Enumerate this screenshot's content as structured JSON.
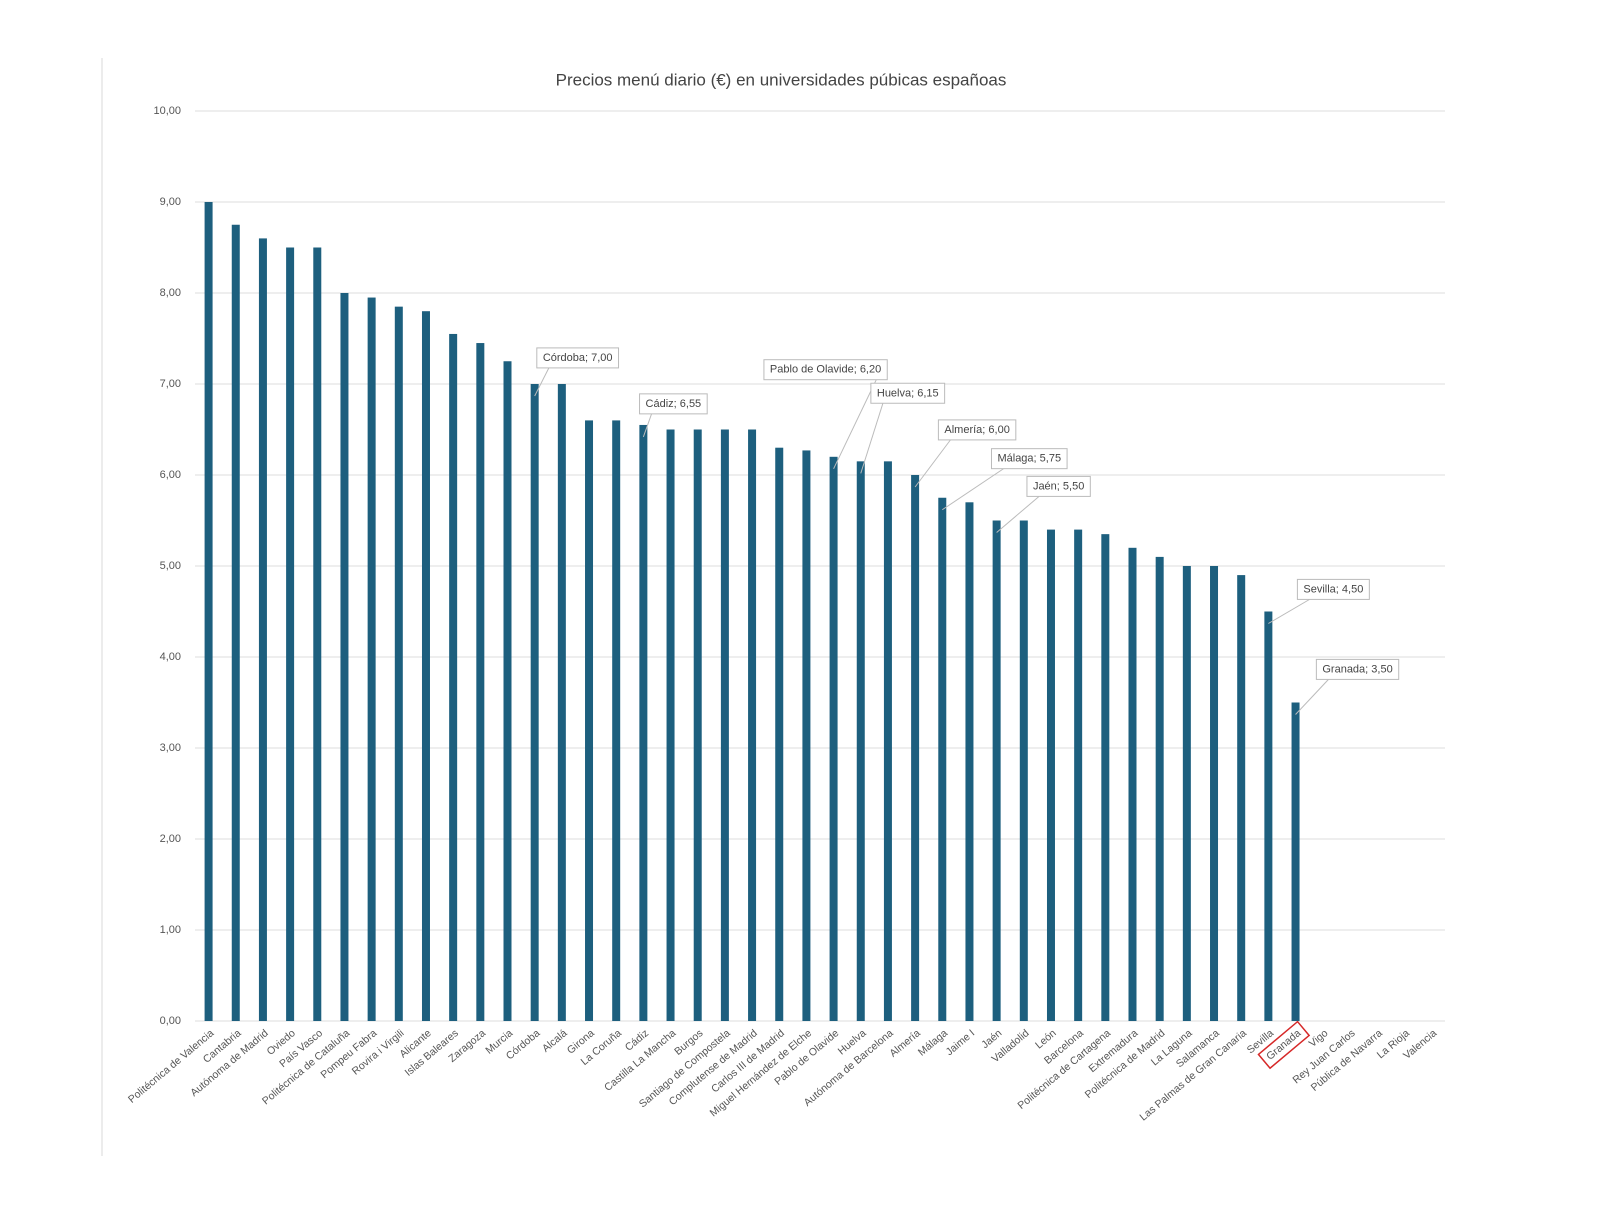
{
  "chart_data": {
    "type": "bar",
    "title": "Precios menú diario (€) en universidades púbicas españoas",
    "categories": [
      "Politécnica de Valencia",
      "Cantabria",
      "Autónoma de Madrid",
      "Oviedo",
      "País Vasco",
      "Politécnica de Cataluña",
      "Pompeu Fabra",
      "Rovira i Virgili",
      "Alicante",
      "Islas Baleares",
      "Zaragoza",
      "Murcia",
      "Córdoba",
      "Alcalá",
      "Girona",
      "La Coruña",
      "Cádiz",
      "Castilla La Mancha",
      "Burgos",
      "Santiago de Compostela",
      "Complutense de Madrid",
      "Carlos III de Madrid",
      "Miguel Hernández de Elche",
      "Pablo de Olavide",
      "Huelva",
      "Autónoma de Barcelona",
      "Almería",
      "Málaga",
      "Jaime I",
      "Jaén",
      "Valladolid",
      "León",
      "Barcelona",
      "Politécnica de Cartagena",
      "Extremadura",
      "Politécnica de Madrid",
      "La Laguna",
      "Salamanca",
      "Las Palmas de Gran Canaria",
      "Sevilla",
      "Granada",
      "Vigo",
      "Rey Juan Carlos",
      "Pública de Navarra",
      "La Rioja",
      "Valencia"
    ],
    "values": [
      9.0,
      8.75,
      8.6,
      8.5,
      8.5,
      8.0,
      7.95,
      7.85,
      7.8,
      7.55,
      7.45,
      7.25,
      7.0,
      7.0,
      6.6,
      6.6,
      6.55,
      6.5,
      6.5,
      6.5,
      6.5,
      6.3,
      6.27,
      6.2,
      6.15,
      6.15,
      6.0,
      5.75,
      5.7,
      5.5,
      5.5,
      5.4,
      5.4,
      5.35,
      5.2,
      5.1,
      5.0,
      5.0,
      4.9,
      4.5,
      3.5,
      null,
      null,
      null,
      null,
      null
    ],
    "value_labels": [
      null,
      null,
      null,
      null,
      null,
      null,
      null,
      null,
      null,
      null,
      null,
      null,
      "Córdoba; 7,00",
      null,
      null,
      null,
      "Cádiz; 6,55",
      null,
      null,
      null,
      null,
      null,
      null,
      "Pablo de Olavide; 6,20",
      "Huelva; 6,15",
      null,
      "Almería; 6,00",
      "Málaga; 5,75",
      null,
      "Jaén; 5,50",
      null,
      null,
      null,
      null,
      null,
      null,
      null,
      null,
      null,
      "Sevilla; 4,50",
      "Granada; 3,50",
      null,
      null,
      null,
      null,
      null
    ],
    "color": "#1d5f7e",
    "ylim": [
      0,
      10
    ],
    "yticks": [
      {
        "value": 0,
        "label": "0,00"
      },
      {
        "value": 1,
        "label": "1,00"
      },
      {
        "value": 2,
        "label": "2,00"
      },
      {
        "value": 3,
        "label": "3,00"
      },
      {
        "value": 4,
        "label": "4,00"
      },
      {
        "value": 5,
        "label": "5,00"
      },
      {
        "value": 6,
        "label": "6,00"
      },
      {
        "value": 7,
        "label": "7,00"
      },
      {
        "value": 8,
        "label": "8,00"
      },
      {
        "value": 9,
        "label": "9,00"
      },
      {
        "value": 10,
        "label": "10,00"
      }
    ],
    "grid": true
  }
}
